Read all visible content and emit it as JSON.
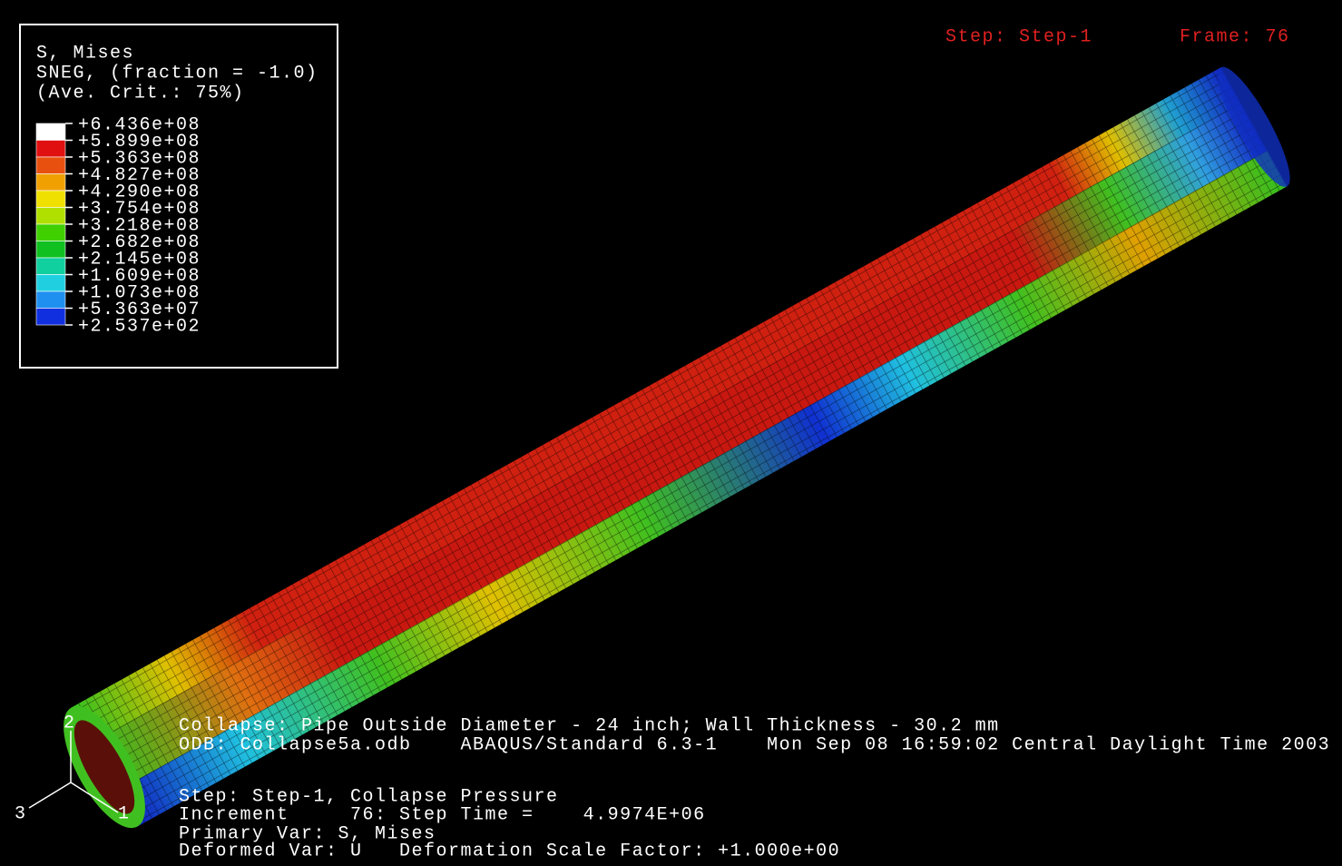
{
  "header": {
    "step": "Step: Step-1",
    "frame": "Frame: 76"
  },
  "legend": {
    "title": [
      "S, Mises",
      "SNEG, (fraction = -1.0)",
      "(Ave. Crit.: 75%)"
    ],
    "labels": [
      "+6.436e+08",
      "+5.899e+08",
      "+5.363e+08",
      "+4.827e+08",
      "+4.290e+08",
      "+3.754e+08",
      "+3.218e+08",
      "+2.682e+08",
      "+2.145e+08",
      "+1.609e+08",
      "+1.073e+08",
      "+5.363e+07",
      "+2.537e+02"
    ],
    "colors": [
      "#ffffff",
      "#e01010",
      "#e85010",
      "#f0a000",
      "#f0e000",
      "#b0e000",
      "#40d000",
      "#10c020",
      "#10d0a0",
      "#20d0e0",
      "#2090f0",
      "#1030e0",
      "#1010a0"
    ]
  },
  "info": [
    "Collapse: Pipe Outside Diameter - 24 inch; Wall Thickness - 30.2 mm",
    "ODB: Collapse5a.odb    ABAQUS/Standard 6.3-1    Mon Sep 08 16:59:02 Central Daylight Time 2003",
    "Step: Step-1, Collapse Pressure",
    "Increment     76: Step Time =    4.9974E+06",
    "Primary Var: S, Mises",
    "Deformed Var: U   Deformation Scale Factor: +1.000e+00"
  ],
  "triad": [
    "1",
    "2",
    "3"
  ]
}
